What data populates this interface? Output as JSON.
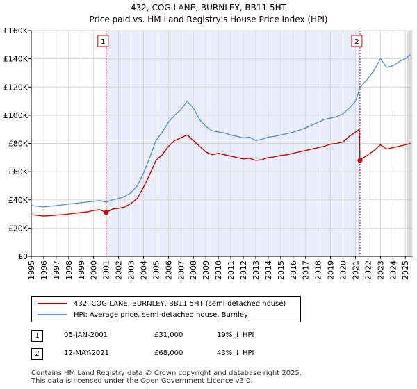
{
  "chart_data": {
    "type": "line",
    "title": "432, COG LANE, BURNLEY, BB11 5HT",
    "subtitle": "Price paid vs. HM Land Registry's House Price Index (HPI)",
    "xlim": [
      1995,
      2025.6
    ],
    "ylim": [
      0,
      160000
    ],
    "x_ticks": [
      1995,
      1996,
      1997,
      1998,
      1999,
      2000,
      2001,
      2002,
      2003,
      2004,
      2005,
      2006,
      2007,
      2008,
      2009,
      2010,
      2011,
      2012,
      2013,
      2014,
      2015,
      2016,
      2017,
      2018,
      2019,
      2020,
      2021,
      2022,
      2023,
      2024,
      2025
    ],
    "y_ticks": [
      0,
      20000,
      40000,
      60000,
      80000,
      100000,
      120000,
      140000,
      160000
    ],
    "y_tick_labels": [
      "£0",
      "£20K",
      "£40K",
      "£60K",
      "£80K",
      "£100K",
      "£120K",
      "£140K",
      "£160K"
    ],
    "shaded_period": [
      2001.01,
      2021.36
    ],
    "series": [
      {
        "name": "432, COG LANE, BURNLEY, BB11 5HT (semi-detached house)",
        "color": "#cc0000",
        "x": [
          1995,
          1995.5,
          1996,
          1996.5,
          1997,
          1997.5,
          1998,
          1998.5,
          1999,
          1999.5,
          2000,
          2000.5,
          2001.01,
          2001.5,
          2002,
          2002.5,
          2003,
          2003.5,
          2004,
          2004.5,
          2005,
          2005.5,
          2006,
          2006.5,
          2007,
          2007.5,
          2008,
          2008.5,
          2009,
          2009.5,
          2010,
          2010.5,
          2011,
          2011.5,
          2012,
          2012.5,
          2013,
          2013.5,
          2014,
          2014.5,
          2015,
          2015.5,
          2016,
          2016.5,
          2017,
          2017.5,
          2018,
          2018.5,
          2019,
          2019.5,
          2020,
          2020.5,
          2021,
          2021.3,
          2021.36,
          2021.5,
          2022,
          2022.5,
          2023,
          2023.5,
          2024,
          2024.5,
          2025,
          2025.4
        ],
        "values": [
          29500,
          29000,
          28500,
          28800,
          29200,
          29500,
          30000,
          30500,
          31000,
          31500,
          32500,
          33000,
          31000,
          33500,
          34000,
          35000,
          37500,
          41000,
          49000,
          58000,
          68000,
          72000,
          78000,
          82000,
          84000,
          86000,
          82000,
          78000,
          74000,
          72000,
          73000,
          72000,
          71000,
          70000,
          69000,
          69500,
          68000,
          68500,
          70000,
          70500,
          71500,
          72000,
          73000,
          74000,
          75000,
          76000,
          77000,
          78000,
          79500,
          80000,
          81000,
          85000,
          88000,
          90000,
          68000,
          69000,
          72000,
          75000,
          79000,
          76000,
          77000,
          78000,
          79000,
          80000
        ]
      },
      {
        "name": "HPI: Average price, semi-detached house, Burnley",
        "color": "#6090d0",
        "x": [
          1995,
          1995.5,
          1996,
          1996.5,
          1997,
          1997.5,
          1998,
          1998.5,
          1999,
          1999.5,
          2000,
          2000.5,
          2001.01,
          2001.5,
          2002,
          2002.5,
          2003,
          2003.5,
          2004,
          2004.5,
          2005,
          2005.5,
          2006,
          2006.5,
          2007,
          2007.5,
          2008,
          2008.5,
          2009,
          2009.5,
          2010,
          2010.5,
          2011,
          2011.5,
          2012,
          2012.5,
          2013,
          2013.5,
          2014,
          2014.5,
          2015,
          2015.5,
          2016,
          2016.5,
          2017,
          2017.5,
          2018,
          2018.5,
          2019,
          2019.5,
          2020,
          2020.5,
          2021,
          2021.36,
          2021.5,
          2022,
          2022.5,
          2023,
          2023.5,
          2024,
          2024.5,
          2025,
          2025.4
        ],
        "values": [
          36000,
          35500,
          35000,
          35500,
          36000,
          36500,
          37000,
          37500,
          38000,
          38500,
          39000,
          39500,
          38300,
          40000,
          41000,
          42500,
          45000,
          50000,
          59000,
          70000,
          82000,
          88000,
          95000,
          100000,
          104000,
          110000,
          105000,
          97000,
          92000,
          89000,
          88000,
          87500,
          86000,
          85000,
          84000,
          84500,
          82000,
          83000,
          84500,
          85000,
          86000,
          87000,
          88000,
          89500,
          91000,
          93000,
          95000,
          97000,
          98000,
          99000,
          101000,
          105000,
          110000,
          119000,
          121000,
          126000,
          132000,
          140000,
          134000,
          135000,
          138000,
          140000,
          143000
        ]
      }
    ],
    "annotations": [
      {
        "label": "1",
        "x": 2001.01,
        "value": 31000
      },
      {
        "label": "2",
        "x": 2021.36,
        "value": 68000
      }
    ]
  },
  "legend": {
    "entry1": "432, COG LANE, BURNLEY, BB11 5HT (semi-detached house)",
    "entry2": "HPI: Average price, semi-detached house, Burnley"
  },
  "transactions": [
    {
      "num": "1",
      "date": "05-JAN-2001",
      "price": "£31,000",
      "diff": "19% ↓ HPI"
    },
    {
      "num": "2",
      "date": "12-MAY-2021",
      "price": "£68,000",
      "diff": "43% ↓ HPI"
    }
  ],
  "footer": {
    "line1": "Contains HM Land Registry data © Crown copyright and database right 2025.",
    "line2": "This data is licensed under the Open Government Licence v3.0."
  }
}
